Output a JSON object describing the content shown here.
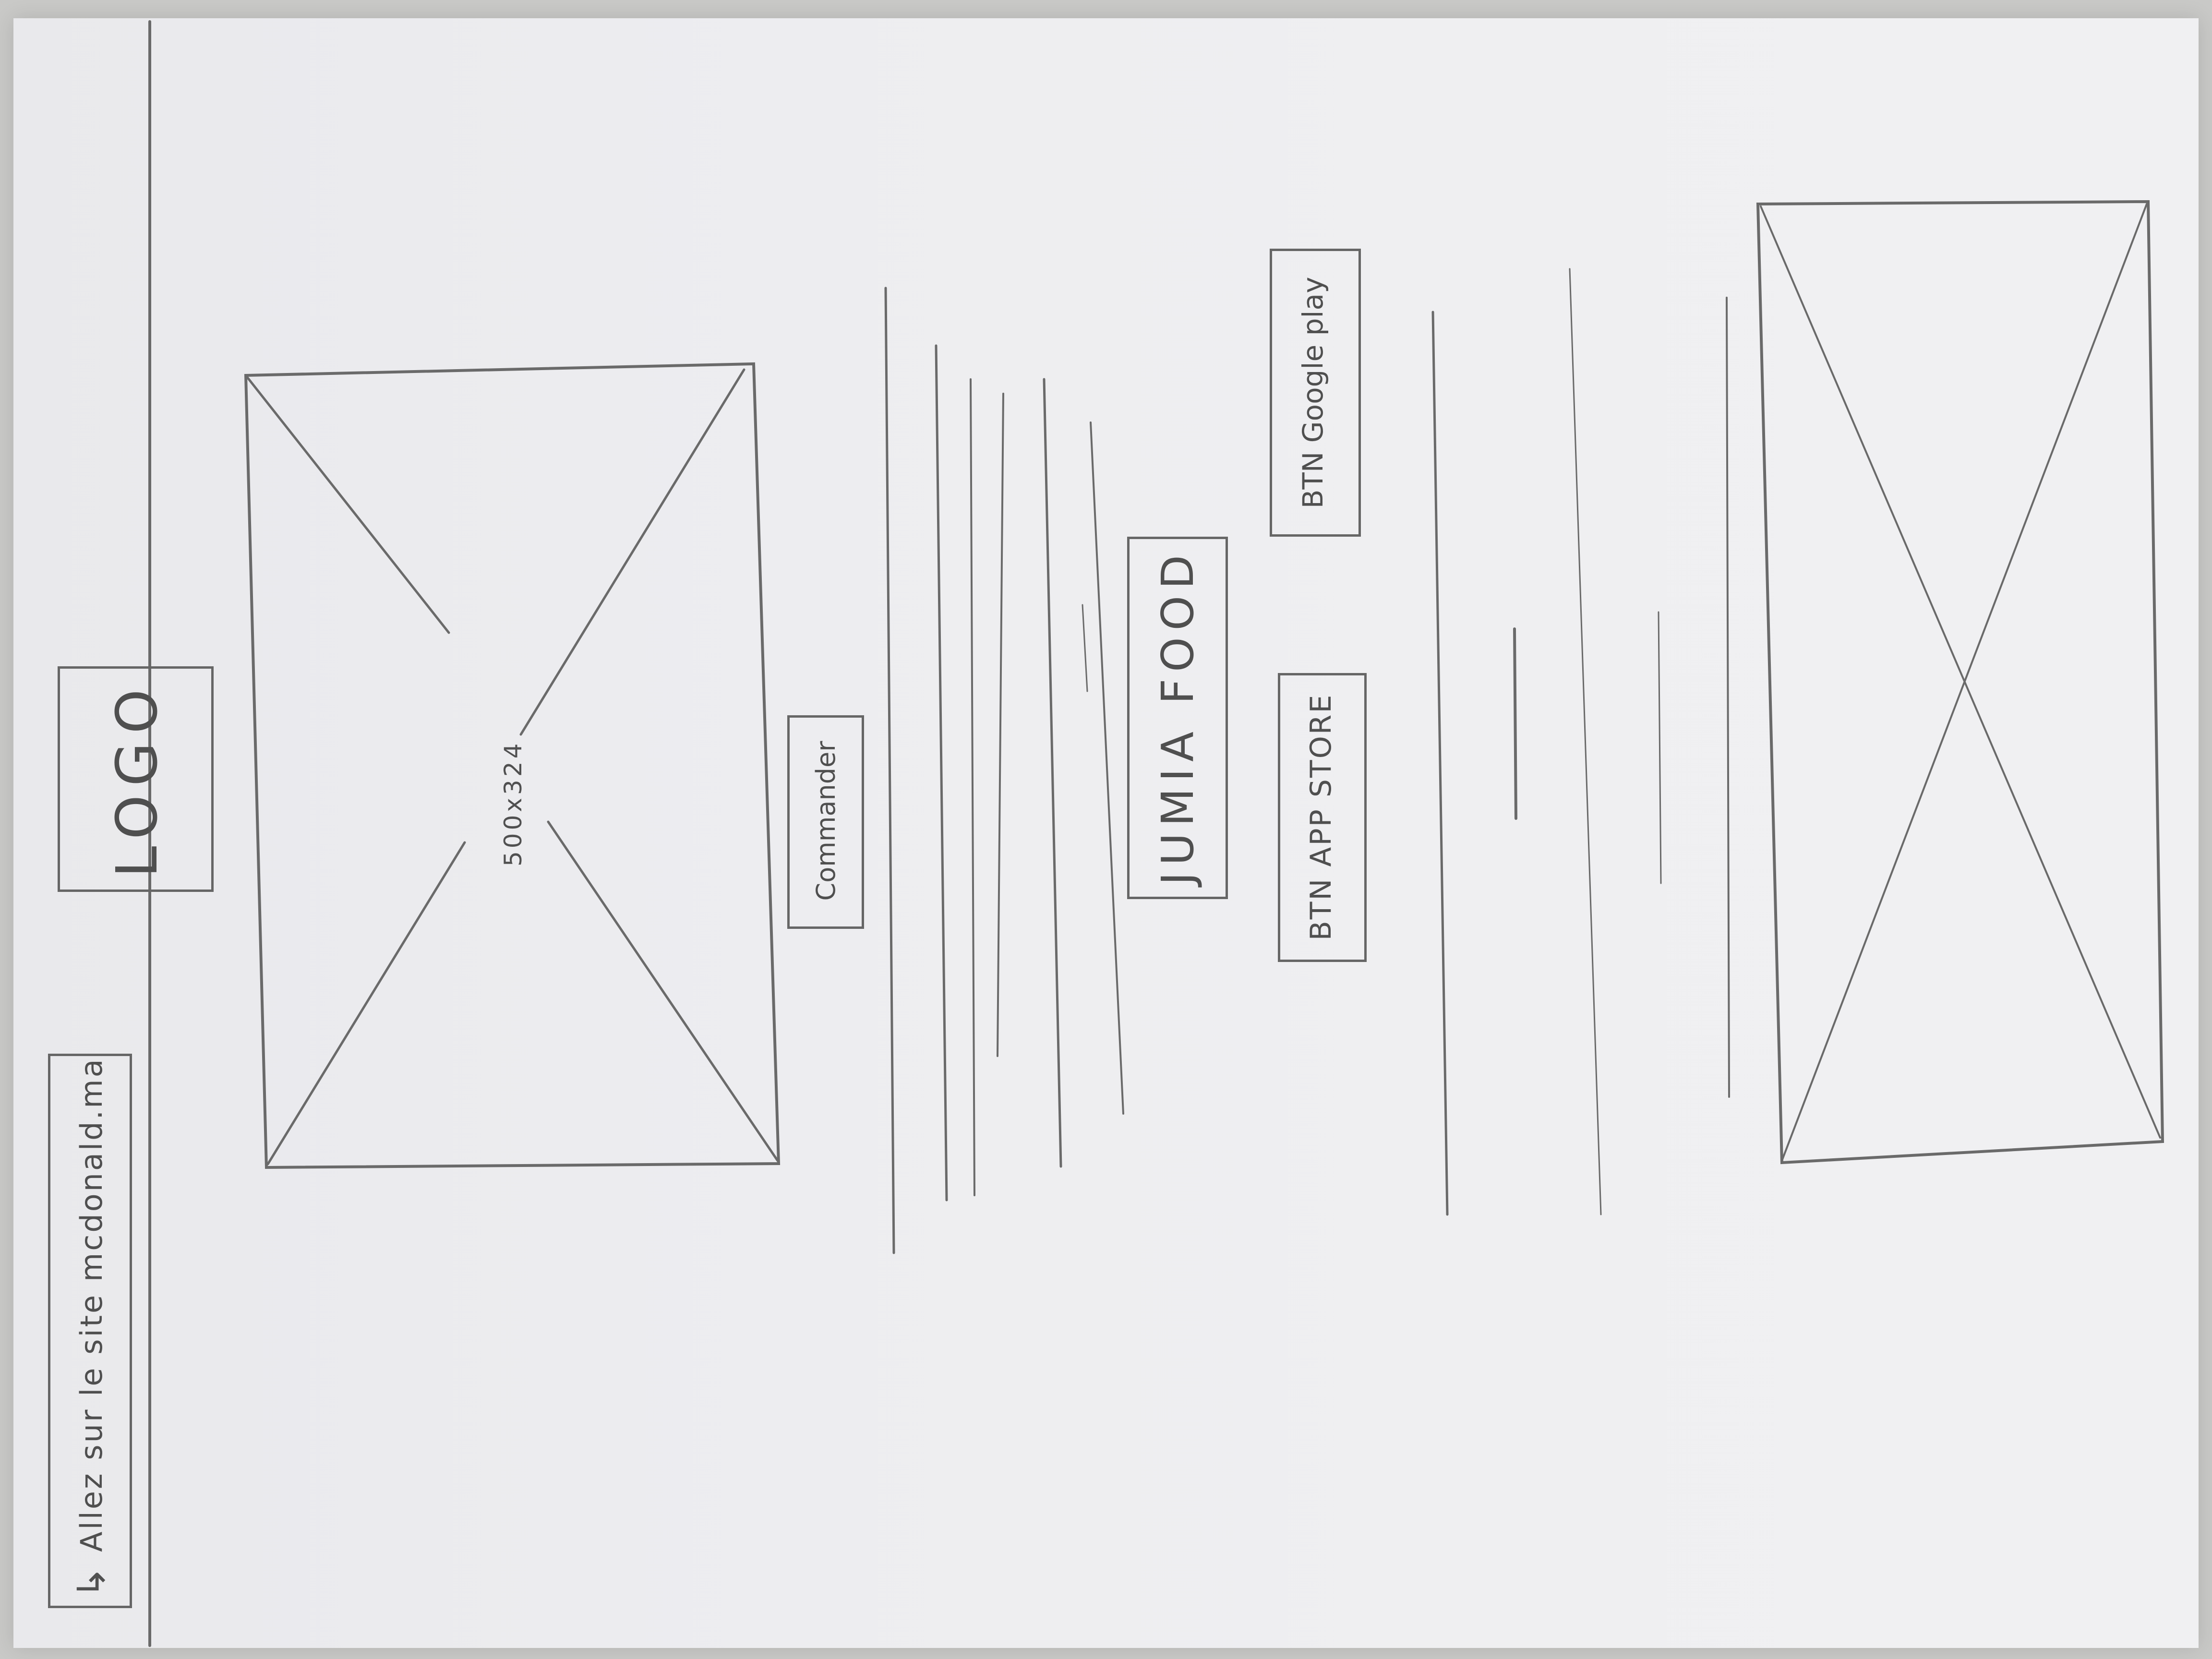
{
  "top_bar": {
    "redirect_arrow_icon": "arrow-left-icon",
    "redirect_label": "Allez sur le site mcdonald.ma",
    "logo_label": "LOGO"
  },
  "hero": {
    "image_placeholder_label": "500x324",
    "order_button_label": "Commander"
  },
  "app_section": {
    "title": "JUMIA FOOD",
    "app_store_button_label": "BTN APP STORE",
    "google_play_button_label": "BTN Google play"
  },
  "footer": {
    "image_placeholder_label": ""
  }
}
